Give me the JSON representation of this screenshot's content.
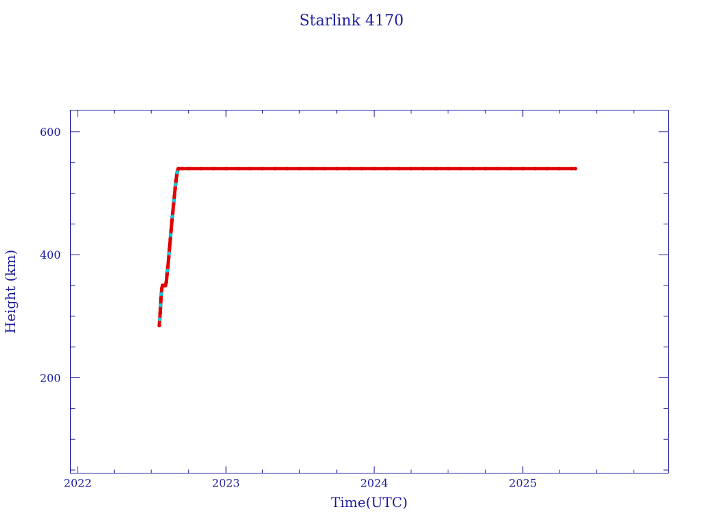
{
  "chart_data": {
    "type": "scatter",
    "title": "Starlink 4170",
    "xlabel": "Time(UTC)",
    "ylabel": "Height (km)",
    "xlim": [
      "2021-12-14",
      "2025-12-25"
    ],
    "ylim": [
      45,
      635
    ],
    "x_ticks": [
      "2022",
      "2023",
      "2024",
      "2025"
    ],
    "y_ticks": [
      200,
      400,
      600
    ],
    "grid": false,
    "colors": {
      "axis": "#1a1aa0",
      "primary": "#e00000",
      "secondary": "#00d8e8"
    },
    "series": [
      {
        "color": "#e00000",
        "marker": "dot",
        "points": [
          [
            "2022-07-21",
            285
          ],
          [
            "2022-07-23",
            305
          ],
          [
            "2022-07-25",
            328
          ],
          [
            "2022-07-27",
            345
          ],
          [
            "2022-07-29",
            350
          ],
          [
            "2022-07-31",
            350
          ],
          [
            "2022-08-03",
            350
          ],
          [
            "2022-08-05",
            350
          ],
          [
            "2022-08-07",
            355
          ],
          [
            "2022-08-09",
            368
          ],
          [
            "2022-08-11",
            380
          ],
          [
            "2022-08-13",
            395
          ],
          [
            "2022-08-15",
            410
          ],
          [
            "2022-08-17",
            425
          ],
          [
            "2022-08-19",
            440
          ],
          [
            "2022-08-21",
            455
          ],
          [
            "2022-08-23",
            468
          ],
          [
            "2022-08-25",
            482
          ],
          [
            "2022-08-27",
            495
          ],
          [
            "2022-08-29",
            508
          ],
          [
            "2022-08-31",
            520
          ],
          [
            "2022-09-02",
            530
          ],
          [
            "2022-09-04",
            537
          ],
          [
            "2022-09-06",
            540
          ],
          [
            "2022-09-15",
            540
          ],
          [
            "2022-10-01",
            540
          ],
          [
            "2022-11-01",
            540
          ],
          [
            "2022-12-01",
            540
          ],
          [
            "2023-01-01",
            540
          ],
          [
            "2023-02-01",
            540
          ],
          [
            "2023-03-01",
            540
          ],
          [
            "2023-04-01",
            540
          ],
          [
            "2023-05-01",
            540
          ],
          [
            "2023-06-01",
            540
          ],
          [
            "2023-07-01",
            540
          ],
          [
            "2023-08-01",
            540
          ],
          [
            "2023-09-01",
            540
          ],
          [
            "2023-10-01",
            540
          ],
          [
            "2023-11-01",
            540
          ],
          [
            "2023-12-01",
            540
          ],
          [
            "2024-01-01",
            540
          ],
          [
            "2024-02-01",
            540
          ],
          [
            "2024-03-01",
            540
          ],
          [
            "2024-04-01",
            540
          ],
          [
            "2024-05-01",
            540
          ],
          [
            "2024-06-01",
            540
          ],
          [
            "2024-07-01",
            540
          ],
          [
            "2024-08-01",
            540
          ],
          [
            "2024-09-01",
            540
          ],
          [
            "2024-10-01",
            540
          ],
          [
            "2024-11-01",
            540
          ],
          [
            "2024-12-01",
            540
          ],
          [
            "2025-01-01",
            540
          ],
          [
            "2025-02-01",
            540
          ],
          [
            "2025-03-01",
            540
          ],
          [
            "2025-04-01",
            540
          ],
          [
            "2025-05-01",
            540
          ],
          [
            "2025-05-10",
            540
          ]
        ]
      },
      {
        "color": "#00d8e8",
        "marker": "star",
        "points": [
          [
            "2022-07-22",
            295
          ],
          [
            "2022-07-24",
            318
          ],
          [
            "2022-07-26",
            336
          ],
          [
            "2022-08-10",
            374
          ],
          [
            "2022-08-14",
            402
          ],
          [
            "2022-08-18",
            432
          ],
          [
            "2022-08-22",
            462
          ],
          [
            "2022-08-26",
            488
          ],
          [
            "2022-08-30",
            514
          ],
          [
            "2022-09-03",
            534
          ]
        ]
      }
    ]
  }
}
